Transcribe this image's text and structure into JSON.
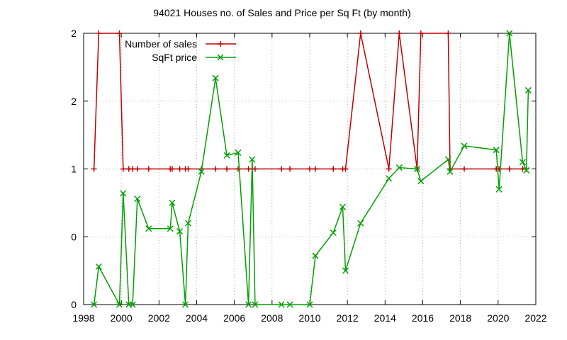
{
  "chart_data": {
    "type": "line",
    "title": "94021 Houses no. of Sales and Price per Sq Ft (by month)",
    "xlabel": "",
    "ylabel": "",
    "xlim": [
      1998,
      2022
    ],
    "ylim": [
      0,
      2
    ],
    "x_ticks": [
      "1998",
      "2000",
      "2002",
      "2004",
      "2006",
      "2008",
      "2010",
      "2012",
      "2014",
      "2016",
      "2018",
      "2020",
      "2022"
    ],
    "y_ticks": [
      "0",
      "0",
      "1",
      "2",
      "2"
    ],
    "grid": true,
    "legend_position": "top-right",
    "series": [
      {
        "name": "Number of sales",
        "color": "#c00000",
        "marker": "plus",
        "x": [
          1998.55,
          1998.8,
          1999.9,
          2000.1,
          2000.4,
          2000.6,
          2000.85,
          2001.45,
          2002.6,
          2002.7,
          2003.1,
          2003.4,
          2003.55,
          2004.25,
          2005.0,
          2005.6,
          2006.2,
          2006.75,
          2006.95,
          2007.1,
          2008.5,
          2008.95,
          2010.0,
          2010.3,
          2011.25,
          2011.75,
          2011.9,
          2012.7,
          2014.2,
          2014.75,
          2015.7,
          2015.9,
          2017.35,
          2017.45,
          2018.2,
          2019.9,
          2020.05,
          2020.6,
          2021.3,
          2021.5
        ],
        "y": [
          1,
          2,
          2,
          1,
          1,
          1,
          1,
          1,
          1,
          1,
          1,
          1,
          1,
          1,
          1,
          1,
          1,
          1,
          1,
          1,
          1,
          1,
          1,
          1,
          1,
          1,
          1,
          2,
          1,
          2,
          1,
          2,
          2,
          1,
          1,
          1,
          1,
          1,
          1,
          1
        ]
      },
      {
        "name": "SqFt price",
        "color": "#00a000",
        "marker": "cross",
        "x": [
          1998.55,
          1998.8,
          1999.9,
          2000.1,
          2000.4,
          2000.6,
          2000.85,
          2001.45,
          2002.6,
          2002.7,
          2003.1,
          2003.4,
          2003.55,
          2004.25,
          2005.0,
          2005.6,
          2006.2,
          2006.75,
          2006.95,
          2007.1,
          2008.5,
          2008.95,
          2010.0,
          2010.3,
          2011.25,
          2011.75,
          2011.9,
          2012.7,
          2014.2,
          2014.75,
          2015.7,
          2015.9,
          2017.35,
          2017.45,
          2018.2,
          2019.9,
          2020.05,
          2020.6,
          2021.3,
          2021.5,
          2021.6
        ],
        "y": [
          0.0,
          0.28,
          0.0,
          0.82,
          0.0,
          0.0,
          0.78,
          0.56,
          0.56,
          0.75,
          0.54,
          0.0,
          0.6,
          0.98,
          1.67,
          1.1,
          1.12,
          0.0,
          1.07,
          0.0,
          0.0,
          0.0,
          0.0,
          0.36,
          0.53,
          0.72,
          0.25,
          0.6,
          0.93,
          1.01,
          1.0,
          0.91,
          1.07,
          0.98,
          1.17,
          1.14,
          0.85,
          2.0,
          1.05,
          0.99,
          1.58
        ]
      }
    ]
  }
}
